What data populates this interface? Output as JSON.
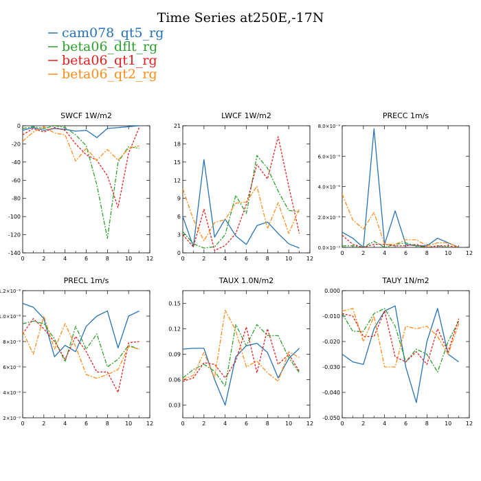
{
  "title": "Time Series at250E,-17N",
  "legend": [
    {
      "label": "cam078_qt5_rg",
      "color": "#2472b5"
    },
    {
      "label": "beta06_dflt_rg",
      "color": "#2ca02c"
    },
    {
      "label": "beta06_qt1_rg",
      "color": "#e02020"
    },
    {
      "label": "beta06_qt2_rg",
      "color": "#ff8c1a"
    }
  ],
  "chart_data": [
    {
      "type": "line",
      "title": "SWCF   1W/m2",
      "xlim": [
        0,
        12
      ],
      "ylim": [
        -140,
        0
      ],
      "xticks": [
        0,
        2,
        4,
        6,
        8,
        10,
        12
      ],
      "yticks": [
        0,
        -20,
        -40,
        -60,
        -80,
        -100,
        -120,
        -140
      ],
      "ytick_labels": [
        "0",
        "-20",
        "-40",
        "-60",
        "-80",
        "-100",
        "-120",
        "-140"
      ],
      "x": [
        0,
        1,
        2,
        3,
        4,
        5,
        6,
        7,
        8,
        9,
        10,
        11
      ],
      "series": [
        {
          "name": "cam078_qt5_rg",
          "values": [
            -5,
            -2,
            -5,
            -3,
            -4,
            -6,
            -5,
            -13,
            -3,
            -2,
            -1,
            0
          ]
        },
        {
          "name": "beta06_dflt_rg",
          "values": [
            -3,
            -1,
            -3,
            0,
            -2,
            -10,
            -22,
            -65,
            -124,
            -40,
            -23,
            -25
          ]
        },
        {
          "name": "beta06_qt1_rg",
          "values": [
            -10,
            -3,
            -7,
            -2,
            -5,
            -20,
            -32,
            -38,
            -55,
            -90,
            -30,
            -2
          ]
        },
        {
          "name": "beta06_qt2_rg",
          "values": [
            -17,
            -7,
            -1,
            -8,
            -10,
            -39,
            -25,
            -38,
            -26,
            -38,
            -25,
            -22
          ]
        }
      ]
    },
    {
      "type": "line",
      "title": "LWCF   1W/m2",
      "xlim": [
        0,
        12
      ],
      "ylim": [
        0,
        21
      ],
      "xticks": [
        0,
        2,
        4,
        6,
        8,
        10,
        12
      ],
      "yticks": [
        0,
        3,
        6,
        9,
        12,
        15,
        18,
        21
      ],
      "ytick_labels": [
        "0",
        "3",
        "6",
        "9",
        "12",
        "15",
        "18",
        "21"
      ],
      "x": [
        0,
        1,
        2,
        3,
        4,
        5,
        6,
        7,
        8,
        9,
        10,
        11
      ],
      "series": [
        {
          "name": "cam078_qt5_rg",
          "values": [
            6.0,
            1.0,
            15.4,
            2.6,
            5.6,
            2.8,
            1.4,
            4.5,
            5.1,
            3.2,
            1.5,
            0.8
          ]
        },
        {
          "name": "beta06_dflt_rg",
          "values": [
            3.5,
            1.5,
            0.8,
            1.0,
            3.0,
            9.5,
            6.5,
            16.1,
            14.0,
            10.2,
            7.0,
            6.8
          ]
        },
        {
          "name": "beta06_qt1_rg",
          "values": [
            3.0,
            1.0,
            7.2,
            0.4,
            1.2,
            3.2,
            8.0,
            14.6,
            12.2,
            19.2,
            11.0,
            3.2
          ]
        },
        {
          "name": "beta06_qt2_rg",
          "values": [
            10.6,
            5.5,
            2.0,
            5.0,
            5.5,
            8.2,
            8.4,
            11.0,
            4.0,
            8.3,
            3.2,
            7.3
          ]
        }
      ]
    },
    {
      "type": "line",
      "title": "PRECC   1m/s",
      "xlim": [
        0,
        12
      ],
      "ylim": [
        0,
        8e-09
      ],
      "xticks": [
        0,
        2,
        4,
        6,
        8,
        10,
        12
      ],
      "yticks": [
        0,
        2e-09,
        4e-09,
        6e-09,
        8e-09
      ],
      "ytick_labels": [
        "0.0×10⁻⁹",
        "2.0×10⁻⁹",
        "4.0×10⁻⁹",
        "6.0×10⁻⁹",
        "8.0×10⁻⁹"
      ],
      "x": [
        0,
        1,
        2,
        3,
        4,
        5,
        6,
        7,
        8,
        9,
        10,
        11
      ],
      "series": [
        {
          "name": "cam078_qt5_rg",
          "values": [
            1e-09,
            6e-10,
            0,
            7.8e-09,
            2e-10,
            2.4e-09,
            2e-10,
            1e-10,
            1e-10,
            6e-10,
            3e-10,
            0
          ]
        },
        {
          "name": "beta06_dflt_rg",
          "values": [
            1e-10,
            1e-10,
            0,
            4e-10,
            0,
            2e-10,
            3e-10,
            1e-10,
            0,
            1e-10,
            0,
            0
          ]
        },
        {
          "name": "beta06_qt1_rg",
          "values": [
            8e-10,
            2e-10,
            0,
            2e-10,
            2e-10,
            1e-10,
            1e-10,
            2e-10,
            0,
            1e-10,
            1e-10,
            0
          ]
        },
        {
          "name": "beta06_qt2_rg",
          "values": [
            3.5e-09,
            1.8e-09,
            1.2e-09,
            2.3e-09,
            2e-10,
            2e-10,
            5e-10,
            5e-10,
            1e-10,
            3e-10,
            3e-10,
            0
          ]
        }
      ]
    },
    {
      "type": "line",
      "title": "PRECL   1m/s",
      "xlim": [
        0,
        12
      ],
      "ylim": [
        2e-09,
        1.2e-08
      ],
      "xticks": [
        0,
        2,
        4,
        6,
        8,
        10,
        12
      ],
      "yticks": [
        2e-09,
        4e-09,
        6e-09,
        8e-09,
        1e-08,
        1.2e-08
      ],
      "ytick_labels": [
        "2×10⁻⁹",
        "4×10⁻⁹",
        "6×10⁻⁹",
        "8×10⁻⁹",
        "1.0×10⁻⁸",
        "1.2×10⁻⁸"
      ],
      "x": [
        0,
        1,
        2,
        3,
        4,
        5,
        6,
        7,
        8,
        9,
        10,
        11
      ],
      "series": [
        {
          "name": "cam078_qt5_rg",
          "values": [
            1.1e-08,
            1.07e-08,
            9.8e-09,
            6.8e-09,
            7.7e-09,
            7.2e-09,
            9.2e-09,
            1e-08,
            1.04e-08,
            7.5e-09,
            1e-08,
            1.04e-08
          ]
        },
        {
          "name": "beta06_dflt_rg",
          "values": [
            9.4e-09,
            9.6e-09,
            9.4e-09,
            8.2e-09,
            6.4e-09,
            9.2e-09,
            7.4e-09,
            8.6e-09,
            6e-09,
            6.6e-09,
            7.7e-09,
            7.4e-09
          ]
        },
        {
          "name": "beta06_qt1_rg",
          "values": [
            8.6e-09,
            9.8e-09,
            9e-09,
            8e-09,
            6.6e-09,
            8.4e-09,
            7.2e-09,
            5.6e-09,
            5.6e-09,
            4e-09,
            7.9e-09,
            8e-09
          ]
        },
        {
          "name": "beta06_qt2_rg",
          "values": [
            8.8e-09,
            7e-09,
            1e-08,
            7.4e-09,
            9.4e-09,
            7.6e-09,
            5.4e-09,
            5.1e-09,
            5.4e-09,
            5.8e-09,
            7.6e-09,
            7.4e-09
          ]
        }
      ]
    },
    {
      "type": "line",
      "title": "TAUX   1.0N/m2",
      "xlim": [
        0,
        12
      ],
      "ylim": [
        0.015,
        0.165
      ],
      "xticks": [
        0,
        2,
        4,
        6,
        8,
        10,
        12
      ],
      "yticks": [
        0.03,
        0.06,
        0.09,
        0.12,
        0.15
      ],
      "ytick_labels": [
        "0.03",
        "0.06",
        "0.09",
        "0.12",
        "0.15"
      ],
      "x": [
        0,
        1,
        2,
        3,
        4,
        5,
        6,
        7,
        8,
        9,
        10,
        11
      ],
      "series": [
        {
          "name": "cam078_qt5_rg",
          "values": [
            0.096,
            0.097,
            0.097,
            0.06,
            0.03,
            0.087,
            0.1,
            0.103,
            0.092,
            0.062,
            0.085,
            0.097
          ]
        },
        {
          "name": "beta06_dflt_rg",
          "values": [
            0.062,
            0.072,
            0.078,
            0.07,
            0.052,
            0.125,
            0.1,
            0.125,
            0.112,
            0.112,
            0.086,
            0.068
          ]
        },
        {
          "name": "beta06_qt1_rg",
          "values": [
            0.058,
            0.062,
            0.08,
            0.078,
            0.062,
            0.082,
            0.122,
            0.068,
            0.12,
            0.078,
            0.09,
            0.07
          ]
        },
        {
          "name": "beta06_qt2_rg",
          "values": [
            0.06,
            0.065,
            0.092,
            0.062,
            0.142,
            0.118,
            0.075,
            0.082,
            0.068,
            0.058,
            0.093,
            0.086
          ]
        }
      ]
    },
    {
      "type": "line",
      "title": "TAUY   1N/m2",
      "xlim": [
        0,
        12
      ],
      "ylim": [
        -0.05,
        0
      ],
      "xticks": [
        0,
        2,
        4,
        6,
        8,
        10,
        12
      ],
      "yticks": [
        0,
        -0.01,
        -0.02,
        -0.03,
        -0.04,
        -0.05
      ],
      "ytick_labels": [
        "0.000",
        "-0.010",
        "-0.020",
        "-0.030",
        "-0.040",
        "-0.050"
      ],
      "x": [
        0,
        1,
        2,
        3,
        4,
        5,
        6,
        7,
        8,
        9,
        10,
        11
      ],
      "series": [
        {
          "name": "cam078_qt5_rg",
          "values": [
            -0.025,
            -0.028,
            -0.029,
            -0.015,
            -0.008,
            -0.006,
            -0.03,
            -0.044,
            -0.02,
            -0.007,
            -0.025,
            -0.028
          ]
        },
        {
          "name": "beta06_dflt_rg",
          "values": [
            -0.009,
            -0.016,
            -0.016,
            -0.009,
            -0.007,
            -0.014,
            -0.028,
            -0.023,
            -0.025,
            -0.032,
            -0.02,
            -0.012
          ]
        },
        {
          "name": "beta06_qt1_rg",
          "values": [
            -0.009,
            -0.01,
            -0.018,
            -0.018,
            -0.008,
            -0.026,
            -0.028,
            -0.024,
            -0.029,
            -0.015,
            -0.024,
            -0.011
          ]
        },
        {
          "name": "beta06_qt2_rg",
          "values": [
            -0.008,
            -0.007,
            -0.02,
            -0.01,
            -0.03,
            -0.03,
            -0.014,
            -0.015,
            -0.014,
            -0.018,
            -0.025,
            -0.013
          ]
        }
      ]
    }
  ]
}
